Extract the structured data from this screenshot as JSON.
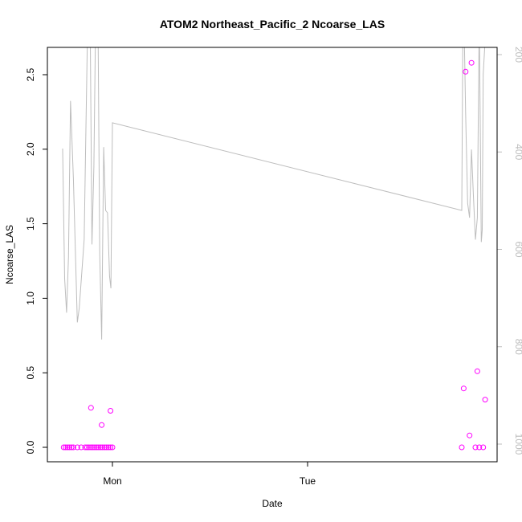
{
  "chart_data": {
    "type": "scatter",
    "title": "ATOM2 Northeast_Pacific_2 Ncoarse_LAS",
    "xlabel": "Date",
    "ylabel": "Ncoarse_LAS",
    "x_tick_labels": [
      "Mon",
      "Tue"
    ],
    "x_tick_values": [
      0.0,
      1.0
    ],
    "x_range": [
      -0.29,
      1.98
    ],
    "ylim": [
      0,
      2.7
    ],
    "y_ticks": [
      0.0,
      0.5,
      1.0,
      1.5,
      2.0,
      2.5
    ],
    "y_tick_labels": [
      "0.0",
      "0.5",
      "1.0",
      "1.5",
      "2.0",
      "2.5"
    ],
    "right_axis": {
      "ticks": [
        200,
        400,
        600,
        800,
        1000
      ],
      "tick_labels": [
        "200",
        "400",
        "600",
        "800",
        "1000"
      ],
      "range_top": 190,
      "range_bottom": 1025,
      "color": "#bdbdbd"
    },
    "series": [
      {
        "kind": "points",
        "color": "#ff00ff",
        "x": [
          -0.25,
          -0.24,
          -0.23,
          -0.22,
          -0.21,
          -0.2,
          -0.18,
          -0.16,
          -0.14,
          -0.13,
          -0.12,
          -0.11,
          -0.1,
          -0.09,
          -0.08,
          -0.07,
          -0.06,
          -0.05,
          -0.04,
          -0.03,
          -0.02,
          -0.01,
          0.0,
          -0.11,
          -0.055,
          -0.01,
          1.79,
          1.8,
          1.81,
          1.83,
          1.84,
          1.86,
          1.87,
          1.88,
          1.9,
          1.91
        ],
        "y": [
          0,
          0,
          0,
          0,
          0,
          0,
          0,
          0,
          0,
          0,
          0,
          0,
          0,
          0,
          0,
          0,
          0,
          0,
          0,
          0,
          0,
          0,
          0,
          0.265,
          0.15,
          0.245,
          0.0,
          0.395,
          2.52,
          0.08,
          2.58,
          0.0,
          0.51,
          0.0,
          0.0,
          0.32
        ]
      },
      {
        "kind": "line",
        "color": "#bdbdbd",
        "axis": "right",
        "x": [
          -0.255,
          -0.245,
          -0.235,
          -0.225,
          -0.215,
          -0.2,
          -0.19,
          -0.18,
          -0.17,
          -0.16,
          -0.145,
          -0.135,
          -0.125,
          -0.115,
          -0.105,
          -0.095,
          -0.085,
          -0.075,
          -0.065,
          -0.055,
          -0.045,
          -0.035,
          -0.025,
          -0.015,
          -0.008,
          0.0,
          1.79,
          1.795,
          1.8,
          1.81,
          1.82,
          1.83,
          1.84,
          1.85,
          1.86,
          1.87,
          1.88,
          1.89,
          1.895,
          1.9,
          1.91
        ],
        "y": [
          393,
          660,
          730,
          615,
          295,
          455,
          600,
          750,
          720,
          665,
          580,
          330,
          90,
          95,
          590,
          430,
          95,
          80,
          610,
          785,
          390,
          520,
          525,
          655,
          680,
          340,
          520,
          190,
          90,
          320,
          505,
          535,
          395,
          490,
          580,
          535,
          120,
          585,
          560,
          240,
          170
        ]
      }
    ]
  }
}
